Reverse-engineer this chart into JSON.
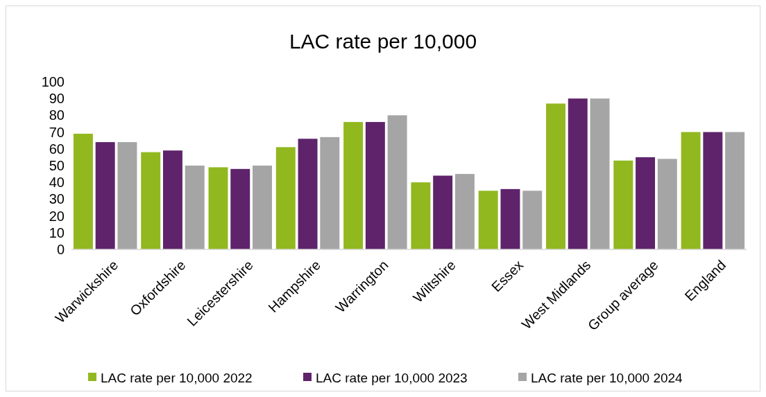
{
  "chart_data": {
    "type": "bar",
    "title": "LAC rate per 10,000",
    "categories": [
      "Warwickshire",
      "Oxfordshire",
      "Leicestershire",
      "Hampshire",
      "Warrington",
      "Wiltshire",
      "Essex",
      "West Midlands",
      "Group average",
      "England"
    ],
    "series": [
      {
        "name": "LAC rate per 10,000 2022",
        "color": "#92b81f",
        "values": [
          69,
          58,
          49,
          61,
          76,
          40,
          35,
          87,
          53,
          70
        ]
      },
      {
        "name": "LAC rate per 10,000 2023",
        "color": "#5e236b",
        "values": [
          64,
          59,
          48,
          66,
          76,
          44,
          36,
          90,
          55,
          70
        ]
      },
      {
        "name": "LAC rate per 10,000 2024",
        "color": "#a5a5a5",
        "values": [
          64,
          50,
          50,
          67,
          80,
          45,
          35,
          90,
          54,
          70
        ]
      }
    ],
    "ylim": [
      0,
      100
    ],
    "yticks": [
      0,
      10,
      20,
      30,
      40,
      50,
      60,
      70,
      80,
      90,
      100
    ],
    "grid": false,
    "legend": "bottom"
  }
}
